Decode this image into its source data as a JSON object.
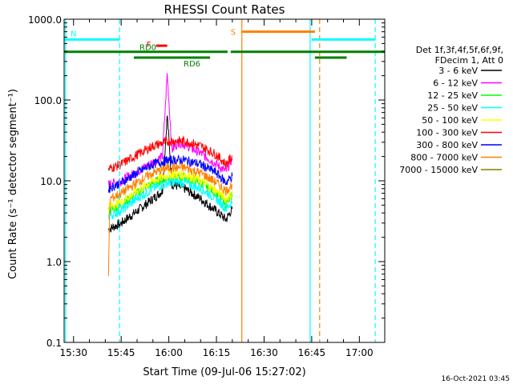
{
  "chart_data": {
    "type": "line",
    "title": "RHESSI Count Rates",
    "xlabel": "Start Time (09-Jul-06 15:27:02)",
    "ylabel": "Count Rate (s⁻¹ detector segment⁻¹)",
    "xscale": "time",
    "yscale": "log",
    "xlim": [
      "15:27:02",
      "17:08:00"
    ],
    "ylim": [
      0.1,
      1000
    ],
    "x_ticks": [
      "15:30",
      "15:45",
      "16:00",
      "16:15",
      "16:30",
      "16:45",
      "17:00"
    ],
    "y_ticks": [
      "0.1",
      "1.0",
      "10.0",
      "100.0",
      "1000.0"
    ],
    "grid": false,
    "legend": {
      "placement": "right",
      "header": [
        "Det 1f,3f,4f,5f,6f,9f,",
        "FDecim 1, Att 0"
      ],
      "entries": [
        {
          "label": "3 - 6 keV",
          "color": "#000000"
        },
        {
          "label": "6 - 12 keV",
          "color": "#ff00ff"
        },
        {
          "label": "12 - 25 keV",
          "color": "#00ff00"
        },
        {
          "label": "25 - 50 keV",
          "color": "#00ffff"
        },
        {
          "label": "50 - 100 keV",
          "color": "#ffff00"
        },
        {
          "label": "100 - 300 keV",
          "color": "#ff0000"
        },
        {
          "label": "300 - 800 keV",
          "color": "#0000ff"
        },
        {
          "label": "800 - 7000 keV",
          "color": "#ff8000"
        },
        {
          "label": "7000 - 15000 keV",
          "color": "#808000"
        }
      ]
    },
    "series": [
      {
        "name": "3 - 6 keV",
        "color": "#000000",
        "x": [
          "15:41:00",
          "15:45:00",
          "15:50:00",
          "15:55:00",
          "15:58:00",
          "15:59:30",
          "16:01:00",
          "16:05:00",
          "16:10:00",
          "16:15:00",
          "16:18:00",
          "16:20:00"
        ],
        "y": [
          2.5,
          3.0,
          4.2,
          6.0,
          7.5,
          65,
          9.0,
          8.0,
          6.0,
          4.2,
          3.3,
          4.5
        ]
      },
      {
        "name": "6 - 12 keV",
        "color": "#ff00ff",
        "x": [
          "15:41:00",
          "15:45:00",
          "15:50:00",
          "15:55:00",
          "15:58:00",
          "15:59:30",
          "16:01:00",
          "16:03:00",
          "16:05:00",
          "16:10:00",
          "16:15:00",
          "16:18:00",
          "16:20:00"
        ],
        "y": [
          9,
          10,
          13,
          17,
          20,
          210,
          24,
          30,
          28,
          22,
          16,
          13,
          19
        ]
      },
      {
        "name": "12 - 25 keV",
        "color": "#00ff00",
        "x": [
          "15:41:00",
          "15:45:00",
          "15:50:00",
          "15:55:00",
          "16:00:00",
          "16:05:00",
          "16:10:00",
          "16:15:00",
          "16:18:00",
          "16:20:00"
        ],
        "y": [
          4.2,
          5.0,
          7.0,
          9.5,
          11,
          11,
          9.5,
          7.0,
          5.2,
          6.5
        ]
      },
      {
        "name": "25 - 50 keV",
        "color": "#00ffff",
        "x": [
          "15:41:00",
          "15:45:00",
          "15:50:00",
          "15:55:00",
          "16:00:00",
          "16:05:00",
          "16:10:00",
          "16:15:00",
          "16:18:00",
          "16:20:00"
        ],
        "y": [
          3.6,
          4.3,
          6.0,
          8.0,
          9.5,
          9.5,
          8.0,
          6.0,
          4.5,
          5.5
        ]
      },
      {
        "name": "50 - 100 keV",
        "color": "#ffff00",
        "x": [
          "15:41:00",
          "15:45:00",
          "15:50:00",
          "15:55:00",
          "16:00:00",
          "16:05:00",
          "16:10:00",
          "16:15:00",
          "16:18:00",
          "16:20:00"
        ],
        "y": [
          4.8,
          5.5,
          7.5,
          10,
          12,
          12,
          10,
          7.5,
          6.0,
          7.0
        ]
      },
      {
        "name": "100 - 300 keV",
        "color": "#ff0000",
        "x": [
          "15:41:00",
          "15:45:00",
          "15:50:00",
          "15:55:00",
          "16:00:00",
          "16:05:00",
          "16:10:00",
          "16:15:00",
          "16:18:00",
          "16:20:00"
        ],
        "y": [
          14,
          16,
          21,
          27,
          31,
          31,
          27,
          21,
          16,
          20
        ]
      },
      {
        "name": "300 - 800 keV",
        "color": "#0000ff",
        "x": [
          "15:41:00",
          "15:45:00",
          "15:50:00",
          "15:55:00",
          "16:00:00",
          "16:05:00",
          "16:10:00",
          "16:15:00",
          "16:18:00",
          "16:20:00"
        ],
        "y": [
          8.0,
          9.5,
          12.5,
          16,
          18,
          18,
          16,
          12.5,
          9.5,
          11.5
        ]
      },
      {
        "name": "800 - 7000 keV",
        "color": "#ff8000",
        "x": [
          "15:41:00",
          "15:41:30",
          "15:45:00",
          "15:50:00",
          "15:55:00",
          "16:00:00",
          "16:05:00",
          "16:10:00",
          "16:15:00",
          "16:18:00",
          "16:20:00"
        ],
        "y": [
          0.7,
          6.0,
          7.0,
          9.5,
          12.5,
          14.5,
          14.5,
          12.5,
          9.5,
          7.5,
          9.0
        ]
      }
    ],
    "state_bars": [
      {
        "label": "N",
        "color": "#00ffff",
        "level": 560,
        "segments": [
          [
            "15:27:02",
            "15:44:30"
          ],
          [
            "16:45:00",
            "17:05:00"
          ]
        ]
      },
      {
        "label": "S",
        "color": "#ff8000",
        "level": 700,
        "segments": [
          [
            "16:23:00",
            "16:46:00"
          ]
        ]
      },
      {
        "label": "F",
        "color": "#ff0000",
        "level": 470,
        "segments": [
          [
            "15:56:00",
            "15:59:30"
          ]
        ]
      },
      {
        "label": "RD0",
        "color": "#008000",
        "level": 395,
        "segments": [
          [
            "15:27:02",
            "16:18:30"
          ],
          [
            "16:19:30",
            "17:08:00"
          ]
        ]
      },
      {
        "label": "RD6",
        "color": "#008000",
        "level": 335,
        "segments": [
          [
            "15:49:00",
            "16:13:00"
          ],
          [
            "16:46:00",
            "16:56:00"
          ]
        ]
      }
    ],
    "vertical_lines": [
      {
        "time": "15:27:30",
        "color": "#00ffff",
        "style": "solid"
      },
      {
        "time": "15:44:30",
        "color": "#00ffff",
        "style": "dashed"
      },
      {
        "time": "16:23:00",
        "color": "#ff8000",
        "style": "solid"
      },
      {
        "time": "16:44:30",
        "color": "#00ffff",
        "style": "solid"
      },
      {
        "time": "16:47:30",
        "color": "#ff8000",
        "style": "dashed"
      },
      {
        "time": "17:05:00",
        "color": "#00ffff",
        "style": "dashed"
      }
    ]
  },
  "footer": {
    "timestamp": "16-Oct-2021 03:45"
  }
}
